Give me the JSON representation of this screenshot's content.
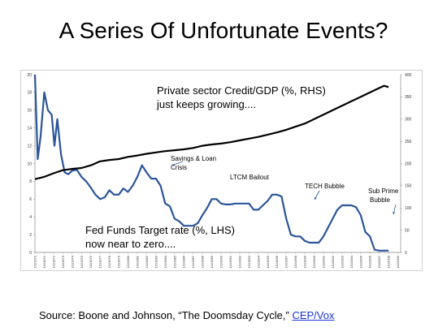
{
  "slide": {
    "title": "A Series Of Unfortunate Events?",
    "source_prefix": "Source: Boone and Johnson, “The Doomsday Cycle,” ",
    "source_link": "CEP/Vox"
  },
  "chart_data": {
    "type": "line",
    "title": "",
    "xlabel": "",
    "grid": false,
    "colors": {
      "fed_funds": "#2a5599",
      "credit_gdp": "#000000"
    },
    "x": [
      "1/1/1970",
      "1/1/1971",
      "1/1/1972",
      "1/1/1973",
      "1/1/1974",
      "1/1/1975",
      "1/1/1976",
      "1/1/1977",
      "1/1/1978",
      "1/1/1979",
      "1/1/1980",
      "1/1/1981",
      "1/1/1982",
      "1/1/1983",
      "1/1/1984",
      "1/1/1985",
      "1/1/1986",
      "1/1/1987",
      "1/1/1988",
      "1/1/1989",
      "1/1/1990",
      "1/1/1991",
      "1/1/1992",
      "1/1/1993",
      "1/1/1994",
      "1/1/1995",
      "1/1/1996",
      "1/1/1997",
      "1/1/1998",
      "1/1/1999",
      "1/1/2000",
      "1/1/2001",
      "1/1/2002",
      "1/1/2003",
      "1/1/2004",
      "1/1/2005",
      "1/1/2006",
      "1/1/2007",
      "1/1/2008",
      "1/1/2009"
    ],
    "x_tick_labels": [
      "1/1/1970",
      "1/1/1971",
      "1/1/1972",
      "1/1/1973",
      "1/1/1974",
      "1/1/1975",
      "1/1/1976",
      "1/1/1977",
      "1/1/1978",
      "1/1/1979",
      "1/1/1980",
      "1/1/1981",
      "1/1/1982",
      "1/1/1983",
      "1/1/1984",
      "1/1/1985",
      "1/1/1986",
      "1/1/1987",
      "1/1/1988",
      "1/1/1989",
      "1/1/1990",
      "1/1/1991",
      "1/1/1992",
      "1/1/1993",
      "1/1/1994",
      "1/1/1995",
      "1/1/1996",
      "1/1/1997",
      "1/1/1998",
      "1/1/1999",
      "1/1/2000",
      "1/1/2001",
      "1/1/2002",
      "1/1/2003",
      "1/1/2004",
      "1/1/2005",
      "1/1/2006",
      "1/1/2007",
      "1/1/2008",
      "1/1/2009"
    ],
    "y_left": {
      "ylim": [
        0,
        20
      ],
      "ticks": [
        0,
        2,
        4,
        6,
        8,
        10,
        12,
        14,
        16,
        18,
        20
      ]
    },
    "y_right": {
      "ylim": [
        0,
        400
      ],
      "ticks": [
        0,
        50,
        100,
        150,
        200,
        250,
        300,
        350,
        400
      ]
    },
    "series": [
      {
        "name": "Fed Funds Target rate (%, LHS)",
        "axis": "left",
        "points": [
          [
            1970.0,
            20
          ],
          [
            1970.3,
            10.5
          ],
          [
            1970.6,
            13
          ],
          [
            1971.0,
            18
          ],
          [
            1971.4,
            16
          ],
          [
            1971.8,
            15.5
          ],
          [
            1972.1,
            12
          ],
          [
            1972.4,
            15
          ],
          [
            1972.8,
            11
          ],
          [
            1973.2,
            9
          ],
          [
            1973.6,
            8.8
          ],
          [
            1974.0,
            9.2
          ],
          [
            1974.5,
            9.3
          ],
          [
            1975.0,
            8.5
          ],
          [
            1975.5,
            8
          ],
          [
            1976.0,
            7.3
          ],
          [
            1976.5,
            6.5
          ],
          [
            1977.0,
            6
          ],
          [
            1977.5,
            6.2
          ],
          [
            1978.0,
            7
          ],
          [
            1978.5,
            6.5
          ],
          [
            1979.0,
            6.5
          ],
          [
            1979.5,
            7.2
          ],
          [
            1980.0,
            6.8
          ],
          [
            1980.5,
            7.5
          ],
          [
            1981.0,
            8.5
          ],
          [
            1981.5,
            9.8
          ],
          [
            1982.0,
            9
          ],
          [
            1982.5,
            8.3
          ],
          [
            1983.0,
            8.3
          ],
          [
            1983.5,
            7.5
          ],
          [
            1984.0,
            5.5
          ],
          [
            1984.5,
            5.2
          ],
          [
            1985.0,
            3.8
          ],
          [
            1985.5,
            3.5
          ],
          [
            1986.0,
            3
          ],
          [
            1986.5,
            3
          ],
          [
            1987.0,
            3
          ],
          [
            1987.5,
            3.3
          ],
          [
            1988.0,
            4.2
          ],
          [
            1988.5,
            5
          ],
          [
            1989.0,
            6
          ],
          [
            1989.5,
            6
          ],
          [
            1990.0,
            5.5
          ],
          [
            1990.5,
            5.4
          ],
          [
            1991.0,
            5.4
          ],
          [
            1991.5,
            5.5
          ],
          [
            1992.0,
            5.5
          ],
          [
            1992.5,
            5.5
          ],
          [
            1993.0,
            5.5
          ],
          [
            1993.5,
            4.8
          ],
          [
            1994.0,
            4.8
          ],
          [
            1994.5,
            5.3
          ],
          [
            1995.0,
            5.8
          ],
          [
            1995.5,
            6.5
          ],
          [
            1996.0,
            6.5
          ],
          [
            1996.5,
            6.3
          ],
          [
            1997.0,
            3.8
          ],
          [
            1997.5,
            2
          ],
          [
            1998.0,
            1.8
          ],
          [
            1998.5,
            1.8
          ],
          [
            1999.0,
            1.3
          ],
          [
            1999.5,
            1.1
          ],
          [
            2000.0,
            1.1
          ],
          [
            2000.5,
            1.1
          ],
          [
            2001.0,
            1.8
          ],
          [
            2001.5,
            2.8
          ],
          [
            2002.0,
            3.8
          ],
          [
            2002.5,
            4.8
          ],
          [
            2003.0,
            5.3
          ],
          [
            2003.5,
            5.3
          ],
          [
            2004.0,
            5.3
          ],
          [
            2004.5,
            5.1
          ],
          [
            2005.0,
            4.2
          ],
          [
            2005.5,
            2.3
          ],
          [
            2006.0,
            1.8
          ],
          [
            2006.5,
            0.3
          ],
          [
            2007.0,
            0.2
          ],
          [
            2007.5,
            0.2
          ],
          [
            2008.0,
            0.2
          ]
        ]
      },
      {
        "name": "Private sector Credit/GDP (%, RHS)",
        "axis": "right",
        "points": [
          [
            1970.0,
            165
          ],
          [
            1971.0,
            170
          ],
          [
            1972.0,
            178
          ],
          [
            1973.0,
            185
          ],
          [
            1974.0,
            188
          ],
          [
            1975.0,
            190
          ],
          [
            1976.0,
            196
          ],
          [
            1977.0,
            205
          ],
          [
            1978.0,
            208
          ],
          [
            1979.0,
            210
          ],
          [
            1980.0,
            215
          ],
          [
            1981.0,
            218
          ],
          [
            1982.0,
            222
          ],
          [
            1983.0,
            225
          ],
          [
            1984.0,
            228
          ],
          [
            1985.0,
            230
          ],
          [
            1986.0,
            232
          ],
          [
            1987.0,
            235
          ],
          [
            1988.0,
            240
          ],
          [
            1989.0,
            243
          ],
          [
            1990.0,
            245
          ],
          [
            1991.0,
            248
          ],
          [
            1992.0,
            252
          ],
          [
            1993.0,
            256
          ],
          [
            1994.0,
            260
          ],
          [
            1995.0,
            265
          ],
          [
            1996.0,
            270
          ],
          [
            1997.0,
            276
          ],
          [
            1998.0,
            283
          ],
          [
            1999.0,
            290
          ],
          [
            2000.0,
            300
          ],
          [
            2001.0,
            310
          ],
          [
            2002.0,
            320
          ],
          [
            2003.0,
            330
          ],
          [
            2004.0,
            340
          ],
          [
            2005.0,
            350
          ],
          [
            2006.0,
            360
          ],
          [
            2007.0,
            370
          ],
          [
            2007.5,
            375
          ],
          [
            2008.0,
            372
          ]
        ]
      }
    ],
    "annotations": [
      {
        "id": "credit1",
        "text": "Private sector Credit/GDP (%, RHS)"
      },
      {
        "id": "credit2",
        "text": "just keeps growing...."
      },
      {
        "id": "sl1",
        "text": "Savings & Loan"
      },
      {
        "id": "sl2",
        "text": "Crisis"
      },
      {
        "id": "ltcm",
        "text": "LTCM Bailout"
      },
      {
        "id": "tech",
        "text": "TECH Bubble"
      },
      {
        "id": "sub1",
        "text": "Sub Prime"
      },
      {
        "id": "sub2",
        "text": "Bubble"
      },
      {
        "id": "fed1",
        "text": "Fed Funds Target rate (%, LHS)"
      },
      {
        "id": "fed2",
        "text": "now near to zero...."
      }
    ]
  }
}
